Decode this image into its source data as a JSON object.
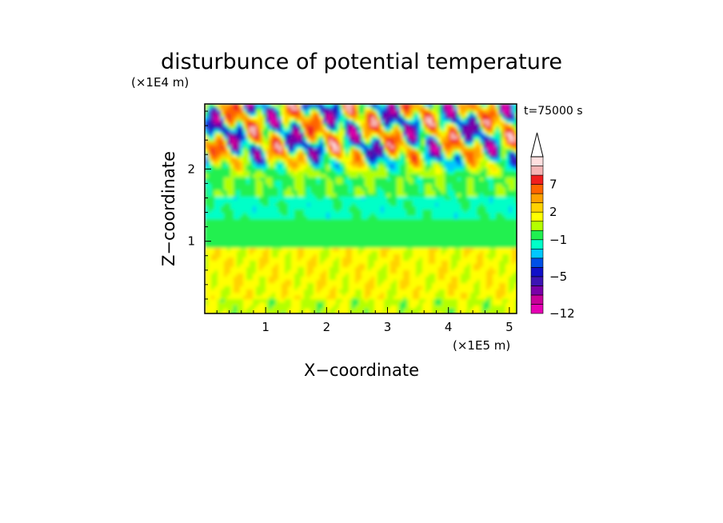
{
  "chart_data": {
    "type": "heatmap",
    "title": "disturbunce of potential temperature",
    "time_label": "t=75000 s",
    "xlabel": "X−coordinate",
    "ylabel": "Z−coordinate",
    "x_unit": "(×1E5 m)",
    "y_unit": "(×1E4 m)",
    "xlim": [
      0,
      5.12
    ],
    "ylim": [
      0,
      2.9
    ],
    "x_ticks": [
      1,
      2,
      3,
      4,
      5
    ],
    "y_ticks": [
      1,
      2
    ],
    "colorbar": {
      "labels": [
        "7",
        "2",
        "−1",
        "−5",
        "−12"
      ],
      "label_values": [
        7,
        2,
        -1,
        -5,
        -12
      ],
      "levels": [
        -12,
        -10,
        -8,
        -6,
        -5,
        -4,
        -3,
        -2,
        -1,
        0,
        1,
        2,
        3,
        5,
        7,
        9,
        11
      ],
      "colors": [
        "#e600b4",
        "#c8009a",
        "#7a00a8",
        "#3c14b4",
        "#1010c8",
        "#0050e6",
        "#00c8ff",
        "#00ffc8",
        "#20f050",
        "#b4ff00",
        "#ffff00",
        "#ffd200",
        "#ffa000",
        "#ff6400",
        "#f01e1e",
        "#f5b4b4",
        "#ffe0e0"
      ],
      "extend": "max"
    },
    "layers": [
      {
        "z_range": [
          0.0,
          0.9
        ],
        "dominant_value": 1,
        "description": "yellow band"
      },
      {
        "z_range": [
          0.9,
          1.3
        ],
        "dominant_value": -0.5,
        "description": "green band"
      },
      {
        "z_range": [
          1.3,
          1.6
        ],
        "dominant_value": -1,
        "description": "cyan band"
      },
      {
        "z_range": [
          1.6,
          1.9
        ],
        "dominant_value": -0.5,
        "description": "green band"
      },
      {
        "z_range": [
          1.9,
          2.9
        ],
        "dominant_value": 0,
        "description": "wave region, values -8 to 9"
      }
    ]
  }
}
